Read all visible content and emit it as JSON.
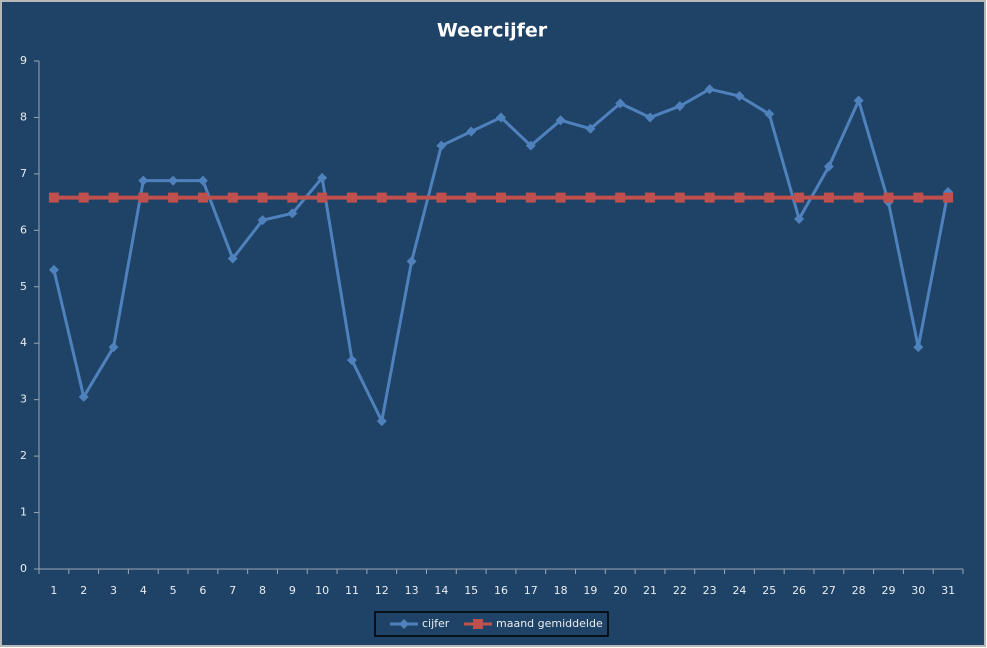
{
  "chart_data": {
    "type": "line",
    "title": "Weercijfer",
    "categories": [
      "1",
      "2",
      "3",
      "4",
      "5",
      "6",
      "7",
      "8",
      "9",
      "10",
      "11",
      "12",
      "13",
      "14",
      "15",
      "16",
      "17",
      "18",
      "19",
      "20",
      "21",
      "22",
      "23",
      "24",
      "25",
      "26",
      "27",
      "28",
      "29",
      "30",
      "31"
    ],
    "series": [
      {
        "name": "cijfer",
        "color": "#4f81bd",
        "marker": "diamond",
        "values": [
          5.3,
          3.05,
          3.93,
          6.88,
          6.88,
          6.88,
          5.5,
          6.18,
          6.3,
          6.93,
          3.7,
          2.62,
          5.45,
          7.5,
          7.75,
          8.0,
          7.5,
          7.95,
          7.8,
          8.25,
          8.0,
          8.2,
          8.5,
          8.38,
          8.06,
          6.2,
          7.13,
          8.3,
          6.5,
          3.93,
          6.68
        ]
      },
      {
        "name": "maand gemiddelde",
        "color": "#c0504d",
        "marker": "square",
        "values": [
          6.58,
          6.58,
          6.58,
          6.58,
          6.58,
          6.58,
          6.58,
          6.58,
          6.58,
          6.58,
          6.58,
          6.58,
          6.58,
          6.58,
          6.58,
          6.58,
          6.58,
          6.58,
          6.58,
          6.58,
          6.58,
          6.58,
          6.58,
          6.58,
          6.58,
          6.58,
          6.58,
          6.58,
          6.58,
          6.58,
          6.58
        ]
      }
    ],
    "ylim": [
      0,
      9
    ],
    "yticks": [
      0,
      1,
      2,
      3,
      4,
      5,
      6,
      7,
      8,
      9
    ],
    "grid": false,
    "legend": "bottom"
  }
}
